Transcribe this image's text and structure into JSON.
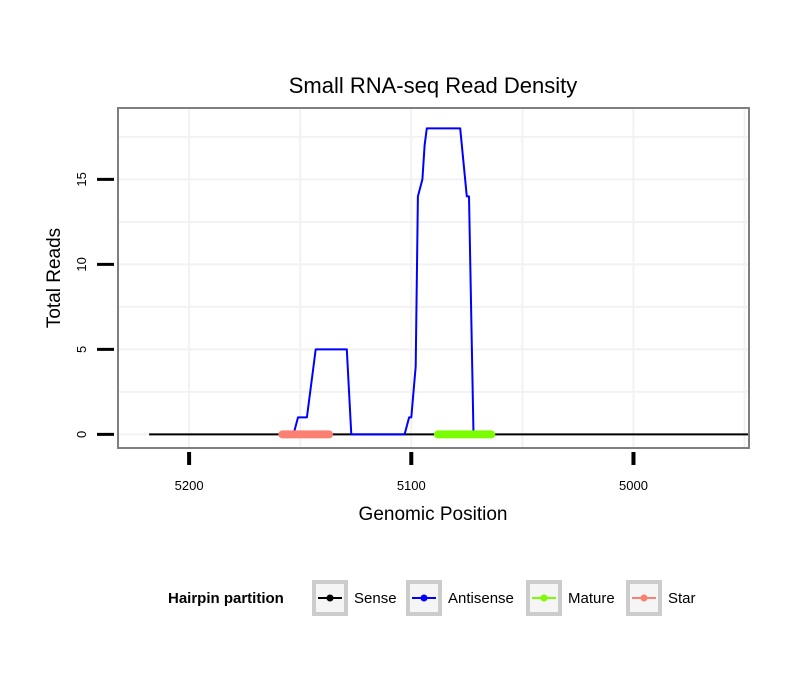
{
  "chart_data": {
    "type": "line",
    "title": "Small RNA-seq Read Density",
    "xlabel": "Genomic Position",
    "ylabel": "Total Reads",
    "x_reversed": true,
    "xlim": [
      5232,
      4948
    ],
    "ylim": [
      -0.8,
      19.2
    ],
    "xticks": [
      5200,
      5100,
      5000
    ],
    "xtick_labels": [
      "5200",
      "5100",
      "5000"
    ],
    "yticks": [
      0,
      5,
      10,
      15
    ],
    "ytick_labels": [
      "0",
      "5",
      "10",
      "15"
    ],
    "grid": true,
    "legend": {
      "title": "Hairpin partition",
      "position": "bottom",
      "entries": [
        {
          "name": "Sense",
          "color": "#000000"
        },
        {
          "name": "Antisense",
          "color": "#0000ff"
        },
        {
          "name": "Mature",
          "color": "#7cfc00"
        },
        {
          "name": "Star",
          "color": "#fa8072"
        }
      ]
    },
    "series": [
      {
        "name": "Sense",
        "color": "#000000",
        "x": [
          5218,
          4948
        ],
        "y": [
          0,
          0
        ]
      },
      {
        "name": "Antisense",
        "color": "#0000ff",
        "x": [
          5153,
          5151,
          5147,
          5143,
          5140,
          5135,
          5129,
          5127,
          5103,
          5101,
          5100,
          5098,
          5097,
          5095,
          5094,
          5093,
          5092,
          5091,
          5089,
          5082,
          5078,
          5075,
          5074,
          5072
        ],
        "y": [
          0,
          1,
          1,
          5,
          5,
          5,
          5,
          0,
          0,
          1,
          1,
          4,
          14,
          15,
          17,
          18,
          18,
          18,
          18,
          18,
          18,
          14,
          14,
          0
        ]
      },
      {
        "name": "Mature",
        "color": "#7cfc00",
        "x": [
          5088,
          5064
        ],
        "y": [
          0,
          0
        ]
      },
      {
        "name": "Star",
        "color": "#fa8072",
        "x": [
          5158,
          5137
        ],
        "y": [
          0,
          0
        ]
      }
    ]
  }
}
